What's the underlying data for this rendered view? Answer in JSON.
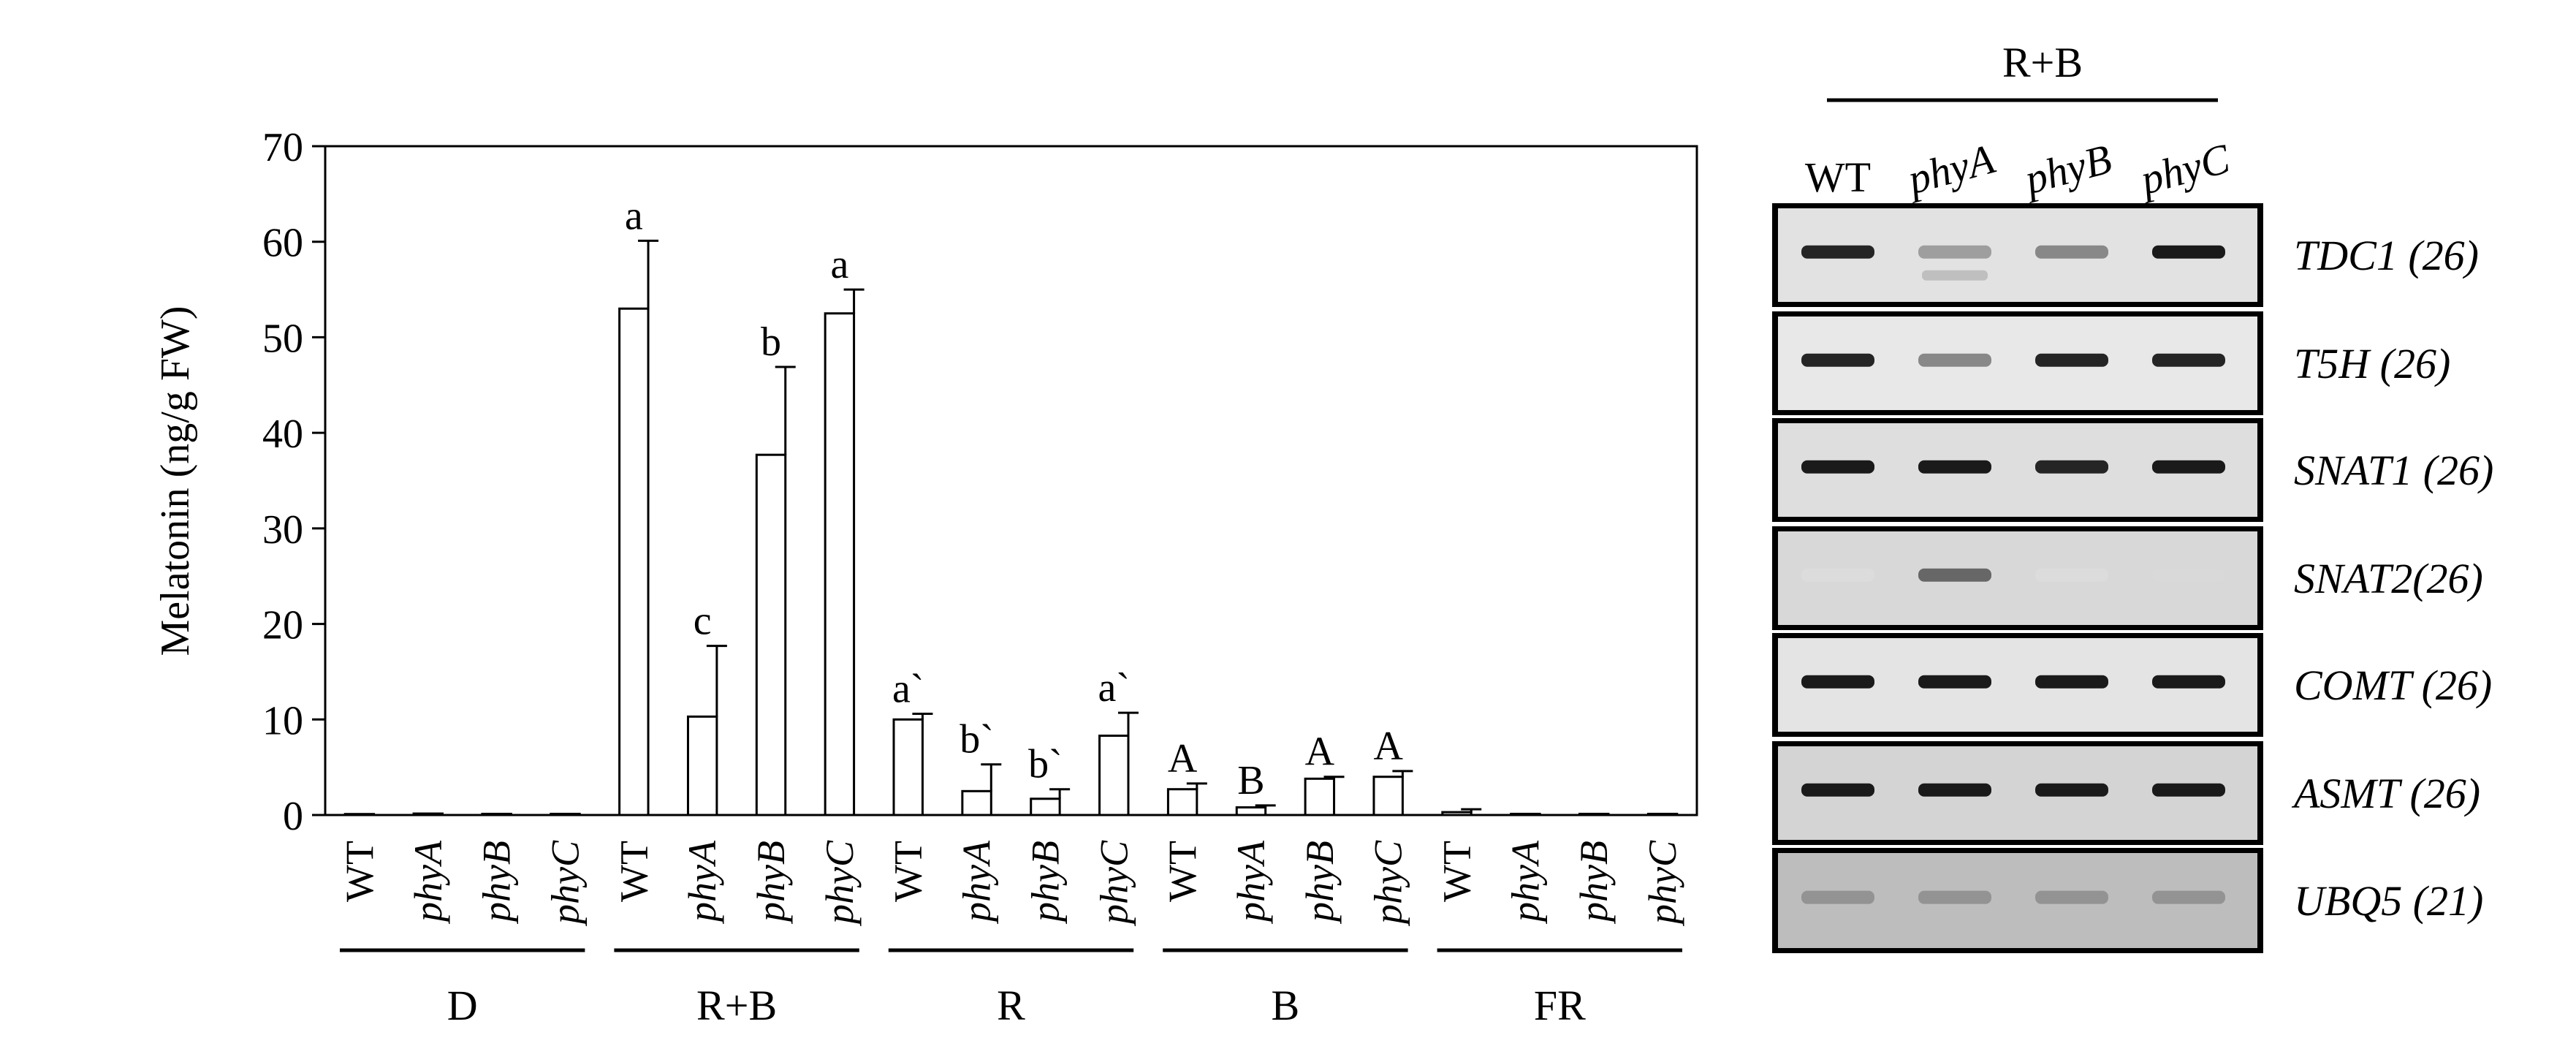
{
  "chart_data": [
    {
      "type": "bar",
      "title": "",
      "xlabel": "",
      "ylabel": "Melatonin (ng/g FW)",
      "ylim": [
        0,
        70
      ],
      "yticks": [
        0,
        10,
        20,
        30,
        40,
        50,
        60,
        70
      ],
      "grid": false,
      "legend": "none",
      "bar_fill": "#ffffff",
      "bar_stroke": "#000000",
      "groups": [
        {
          "label": "D",
          "categories": [
            "WT",
            "phyA",
            "phyB",
            "phyC"
          ],
          "values": [
            0.1,
            0.15,
            0.12,
            0.12
          ],
          "errors": [
            0,
            0,
            0,
            0
          ],
          "letters": [
            "",
            "",
            "",
            ""
          ]
        },
        {
          "label": "R+B",
          "categories": [
            "WT",
            "phyA",
            "phyB",
            "phyC"
          ],
          "values": [
            53,
            10.3,
            37.7,
            52.5
          ],
          "errors": [
            7.1,
            7.4,
            9.2,
            2.5
          ],
          "letters": [
            "a",
            "c",
            "b",
            "a"
          ]
        },
        {
          "label": "R",
          "categories": [
            "WT",
            "phyA",
            "phyB",
            "phyC"
          ],
          "values": [
            10,
            2.5,
            1.7,
            8.3
          ],
          "errors": [
            0.6,
            2.8,
            1.0,
            2.4
          ],
          "letters": [
            "a`",
            "b`",
            "b`",
            "a`"
          ]
        },
        {
          "label": "B",
          "categories": [
            "WT",
            "phyA",
            "phyB",
            "phyC"
          ],
          "values": [
            2.7,
            0.8,
            3.8,
            4.0
          ],
          "errors": [
            0.6,
            0.2,
            0.2,
            0.6
          ],
          "letters": [
            "A",
            "B",
            "A",
            "A"
          ]
        },
        {
          "label": "FR",
          "categories": [
            "WT",
            "phyA",
            "phyB",
            "phyC"
          ],
          "values": [
            0.3,
            0.12,
            0.12,
            0.12
          ],
          "errors": [
            0.3,
            0,
            0,
            0
          ],
          "letters": [
            "",
            "",
            "",
            ""
          ]
        }
      ]
    },
    {
      "type": "table",
      "treatment": "R+B",
      "lanes": [
        "WT",
        "phyA",
        "phyB",
        "phyC"
      ],
      "genes": [
        {
          "label": "TDC1 (26)",
          "bands": [
            0.9,
            0.35,
            0.45,
            0.95
          ],
          "extra_band": [
            0,
            0.2,
            0,
            0
          ],
          "background": "#e2e2e2"
        },
        {
          "label": "T5H (26)",
          "bands": [
            0.9,
            0.45,
            0.9,
            0.9
          ],
          "extra_band": [
            0,
            0,
            0,
            0
          ],
          "background": "#e8e8e8"
        },
        {
          "label": "SNAT1 (26)",
          "bands": [
            0.95,
            0.95,
            0.9,
            0.95
          ],
          "extra_band": [
            0,
            0,
            0,
            0
          ],
          "background": "#dedede"
        },
        {
          "label": "SNAT2(26)",
          "bands": [
            0.05,
            0.6,
            0.05,
            0.08
          ],
          "extra_band": [
            0,
            0,
            0,
            0
          ],
          "background": "#d8d8d8"
        },
        {
          "label": "COMT (26)",
          "bands": [
            0.95,
            0.95,
            0.95,
            0.95
          ],
          "extra_band": [
            0,
            0,
            0,
            0
          ],
          "background": "#e4e4e4"
        },
        {
          "label": "ASMT (26)",
          "bands": [
            0.95,
            0.95,
            0.95,
            0.95
          ],
          "extra_band": [
            0,
            0,
            0,
            0
          ],
          "background": "#d4d4d4"
        },
        {
          "label": "UBQ5 (21)",
          "bands": [
            0.4,
            0.4,
            0.4,
            0.4
          ],
          "extra_band": [
            0,
            0,
            0,
            0
          ],
          "background": "#bdbdbd"
        }
      ]
    }
  ]
}
